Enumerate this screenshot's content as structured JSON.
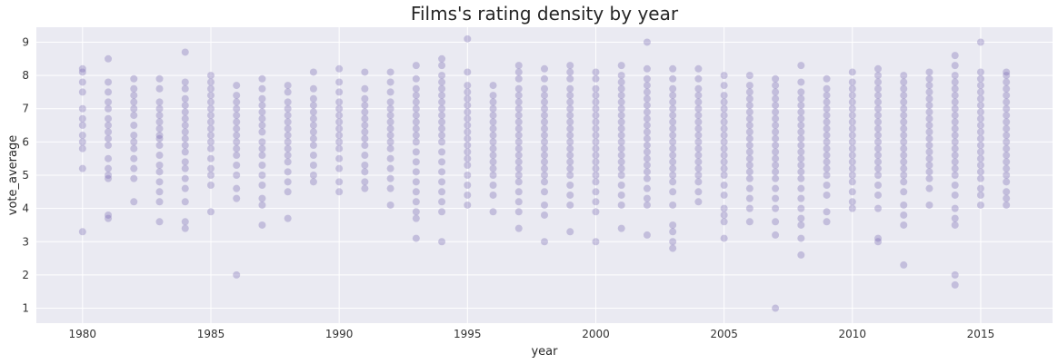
{
  "chart_data": {
    "type": "scatter",
    "title": "Films's rating density by year",
    "xlabel": "year",
    "ylabel": "vote_average",
    "xlim": [
      1978.2,
      2017.8
    ],
    "ylim": [
      0.55,
      9.45
    ],
    "x_ticks": [
      1980,
      1985,
      1990,
      1995,
      2000,
      2005,
      2010,
      2015
    ],
    "y_ticks": [
      1,
      2,
      3,
      4,
      5,
      6,
      7,
      8,
      9
    ],
    "grid": true,
    "point_color": "#7b6db4",
    "point_opacity": 0.35,
    "background_color": "#eaeaf2",
    "grid_color": "#ffffff",
    "series": [
      {
        "points": [
          {
            "year": 1980,
            "vote_average": [
              3.3,
              5.2,
              5.8,
              6.0,
              6.2,
              6.5,
              6.7,
              7.0,
              7.5,
              7.8,
              8.1,
              8.2
            ]
          },
          {
            "year": 1981,
            "vote_average": [
              3.7,
              3.8,
              4.9,
              5.0,
              5.2,
              5.5,
              5.9,
              6.1,
              6.3,
              6.5,
              6.7,
              7.0,
              7.2,
              7.5,
              7.8,
              8.5
            ]
          },
          {
            "year": 1982,
            "vote_average": [
              4.2,
              4.9,
              5.2,
              5.5,
              5.8,
              6.0,
              6.2,
              6.5,
              6.8,
              7.0,
              7.2,
              7.4,
              7.6,
              7.9
            ]
          },
          {
            "year": 1983,
            "vote_average": [
              3.6,
              4.2,
              4.5,
              4.8,
              5.1,
              5.3,
              5.6,
              5.9,
              6.1,
              6.2,
              6.4,
              6.6,
              6.8,
              7.0,
              7.2,
              7.6,
              7.9
            ]
          },
          {
            "year": 1984,
            "vote_average": [
              3.4,
              3.6,
              4.2,
              4.6,
              4.9,
              5.2,
              5.4,
              5.7,
              5.9,
              6.1,
              6.3,
              6.5,
              6.7,
              6.9,
              7.1,
              7.3,
              7.6,
              7.8,
              8.7
            ]
          },
          {
            "year": 1985,
            "vote_average": [
              3.9,
              4.7,
              5.0,
              5.2,
              5.5,
              5.8,
              6.0,
              6.2,
              6.4,
              6.6,
              6.8,
              7.0,
              7.2,
              7.4,
              7.6,
              7.8,
              8.0
            ]
          },
          {
            "year": 1986,
            "vote_average": [
              2.0,
              4.3,
              4.6,
              5.0,
              5.3,
              5.6,
              5.8,
              6.0,
              6.2,
              6.4,
              6.6,
              6.8,
              7.0,
              7.2,
              7.4,
              7.7
            ]
          },
          {
            "year": 1987,
            "vote_average": [
              3.5,
              4.1,
              4.3,
              4.7,
              5.0,
              5.3,
              5.6,
              5.8,
              6.0,
              6.3,
              6.5,
              6.7,
              6.9,
              7.1,
              7.3,
              7.6,
              7.9
            ]
          },
          {
            "year": 1988,
            "vote_average": [
              3.7,
              4.5,
              4.8,
              5.1,
              5.4,
              5.6,
              5.8,
              6.0,
              6.2,
              6.4,
              6.6,
              6.8,
              7.0,
              7.2,
              7.5,
              7.7
            ]
          },
          {
            "year": 1989,
            "vote_average": [
              4.8,
              5.0,
              5.3,
              5.6,
              5.9,
              6.1,
              6.3,
              6.5,
              6.7,
              6.9,
              7.1,
              7.3,
              7.6,
              8.1
            ]
          },
          {
            "year": 1990,
            "vote_average": [
              4.5,
              4.8,
              5.2,
              5.5,
              5.8,
              6.0,
              6.2,
              6.4,
              6.6,
              6.8,
              7.0,
              7.2,
              7.5,
              7.8,
              8.2
            ]
          },
          {
            "year": 1991,
            "vote_average": [
              4.6,
              4.8,
              5.1,
              5.3,
              5.6,
              5.9,
              6.1,
              6.3,
              6.5,
              6.7,
              6.9,
              7.1,
              7.3,
              7.6,
              8.1
            ]
          },
          {
            "year": 1992,
            "vote_average": [
              4.1,
              4.6,
              4.9,
              5.2,
              5.5,
              5.8,
              6.0,
              6.2,
              6.4,
              6.6,
              6.8,
              7.0,
              7.2,
              7.5,
              7.8,
              8.1
            ]
          },
          {
            "year": 1993,
            "vote_average": [
              3.1,
              3.7,
              3.9,
              4.2,
              4.5,
              4.8,
              5.1,
              5.4,
              5.7,
              6.0,
              6.2,
              6.4,
              6.6,
              6.8,
              7.0,
              7.2,
              7.4,
              7.6,
              7.9,
              8.3
            ]
          },
          {
            "year": 1994,
            "vote_average": [
              3.0,
              3.9,
              4.2,
              4.5,
              4.8,
              5.1,
              5.4,
              5.7,
              6.0,
              6.2,
              6.4,
              6.6,
              6.8,
              7.0,
              7.2,
              7.4,
              7.6,
              7.8,
              8.0,
              8.3,
              8.5
            ]
          },
          {
            "year": 1995,
            "vote_average": [
              4.1,
              4.4,
              4.7,
              5.0,
              5.3,
              5.5,
              5.7,
              5.9,
              6.1,
              6.3,
              6.5,
              6.7,
              6.9,
              7.1,
              7.3,
              7.5,
              7.7,
              8.1,
              9.1
            ]
          },
          {
            "year": 1996,
            "vote_average": [
              3.9,
              4.4,
              4.7,
              5.0,
              5.2,
              5.4,
              5.6,
              5.8,
              6.0,
              6.2,
              6.4,
              6.6,
              6.8,
              7.0,
              7.2,
              7.4,
              7.7
            ]
          },
          {
            "year": 1997,
            "vote_average": [
              3.4,
              3.9,
              4.2,
              4.5,
              4.8,
              5.0,
              5.2,
              5.4,
              5.6,
              5.8,
              6.0,
              6.2,
              6.4,
              6.6,
              6.8,
              7.0,
              7.2,
              7.4,
              7.6,
              7.9,
              8.1,
              8.3
            ]
          },
          {
            "year": 1998,
            "vote_average": [
              3.0,
              3.8,
              4.1,
              4.5,
              4.8,
              5.0,
              5.2,
              5.4,
              5.6,
              5.8,
              6.0,
              6.2,
              6.4,
              6.6,
              6.8,
              7.0,
              7.2,
              7.4,
              7.6,
              7.9,
              8.2
            ]
          },
          {
            "year": 1999,
            "vote_average": [
              3.3,
              4.1,
              4.4,
              4.7,
              5.0,
              5.2,
              5.4,
              5.6,
              5.8,
              6.0,
              6.2,
              6.4,
              6.6,
              6.8,
              7.0,
              7.2,
              7.4,
              7.6,
              7.9,
              8.1,
              8.3
            ]
          },
          {
            "year": 2000,
            "vote_average": [
              3.0,
              3.9,
              4.2,
              4.5,
              4.8,
              5.0,
              5.2,
              5.4,
              5.6,
              5.8,
              6.0,
              6.2,
              6.4,
              6.6,
              6.8,
              7.0,
              7.2,
              7.4,
              7.6,
              7.9,
              8.1
            ]
          },
          {
            "year": 2001,
            "vote_average": [
              3.4,
              4.1,
              4.4,
              4.7,
              5.0,
              5.2,
              5.4,
              5.6,
              5.8,
              6.0,
              6.2,
              6.4,
              6.6,
              6.8,
              7.0,
              7.2,
              7.4,
              7.6,
              7.8,
              8.0,
              8.3
            ]
          },
          {
            "year": 2002,
            "vote_average": [
              3.2,
              4.1,
              4.3,
              4.6,
              4.9,
              5.1,
              5.3,
              5.5,
              5.7,
              5.9,
              6.1,
              6.3,
              6.5,
              6.7,
              6.9,
              7.1,
              7.3,
              7.5,
              7.7,
              7.9,
              8.2,
              9.0
            ]
          },
          {
            "year": 2003,
            "vote_average": [
              2.8,
              3.0,
              3.3,
              3.5,
              4.1,
              4.5,
              4.8,
              5.0,
              5.2,
              5.4,
              5.6,
              5.8,
              6.0,
              6.2,
              6.4,
              6.6,
              6.8,
              7.0,
              7.2,
              7.4,
              7.6,
              7.9,
              8.2
            ]
          },
          {
            "year": 2004,
            "vote_average": [
              4.2,
              4.5,
              4.8,
              5.0,
              5.2,
              5.4,
              5.6,
              5.8,
              6.0,
              6.2,
              6.4,
              6.6,
              6.8,
              7.0,
              7.2,
              7.4,
              7.6,
              7.9,
              8.2
            ]
          },
          {
            "year": 2005,
            "vote_average": [
              3.1,
              3.6,
              3.8,
              4.0,
              4.4,
              4.7,
              5.0,
              5.2,
              5.4,
              5.6,
              5.8,
              6.0,
              6.2,
              6.4,
              6.6,
              6.8,
              7.0,
              7.2,
              7.4,
              7.7,
              8.0
            ]
          },
          {
            "year": 2006,
            "vote_average": [
              3.6,
              4.0,
              4.3,
              4.6,
              4.9,
              5.1,
              5.3,
              5.5,
              5.7,
              5.9,
              6.1,
              6.3,
              6.5,
              6.7,
              6.9,
              7.1,
              7.3,
              7.5,
              7.7,
              8.0
            ]
          },
          {
            "year": 2007,
            "vote_average": [
              1.0,
              3.2,
              3.6,
              4.0,
              4.3,
              4.6,
              4.9,
              5.1,
              5.3,
              5.5,
              5.7,
              5.9,
              6.1,
              6.3,
              6.5,
              6.7,
              6.9,
              7.1,
              7.3,
              7.5,
              7.7,
              7.9
            ]
          },
          {
            "year": 2008,
            "vote_average": [
              2.6,
              3.1,
              3.5,
              3.7,
              4.0,
              4.3,
              4.6,
              4.9,
              5.1,
              5.3,
              5.5,
              5.7,
              5.9,
              6.1,
              6.3,
              6.5,
              6.7,
              6.9,
              7.1,
              7.3,
              7.5,
              7.8,
              8.3
            ]
          },
          {
            "year": 2009,
            "vote_average": [
              3.6,
              3.9,
              4.4,
              4.7,
              5.0,
              5.2,
              5.4,
              5.6,
              5.8,
              6.0,
              6.2,
              6.4,
              6.6,
              6.8,
              7.0,
              7.2,
              7.4,
              7.6,
              7.9
            ]
          },
          {
            "year": 2010,
            "vote_average": [
              4.0,
              4.2,
              4.5,
              4.8,
              5.0,
              5.2,
              5.4,
              5.6,
              5.8,
              6.0,
              6.2,
              6.4,
              6.6,
              6.8,
              7.0,
              7.2,
              7.4,
              7.6,
              7.8,
              8.1
            ]
          },
          {
            "year": 2011,
            "vote_average": [
              3.0,
              3.1,
              4.0,
              4.4,
              4.7,
              5.0,
              5.2,
              5.4,
              5.6,
              5.8,
              6.0,
              6.2,
              6.4,
              6.6,
              6.8,
              7.0,
              7.2,
              7.4,
              7.6,
              7.8,
              8.0,
              8.2
            ]
          },
          {
            "year": 2012,
            "vote_average": [
              2.3,
              3.5,
              3.8,
              4.1,
              4.5,
              4.8,
              5.0,
              5.2,
              5.4,
              5.6,
              5.8,
              6.0,
              6.2,
              6.4,
              6.6,
              6.8,
              7.0,
              7.2,
              7.4,
              7.6,
              7.8,
              8.0
            ]
          },
          {
            "year": 2013,
            "vote_average": [
              4.1,
              4.6,
              4.9,
              5.1,
              5.3,
              5.5,
              5.7,
              5.9,
              6.1,
              6.3,
              6.5,
              6.7,
              6.9,
              7.1,
              7.3,
              7.5,
              7.7,
              7.9,
              8.1
            ]
          },
          {
            "year": 2014,
            "vote_average": [
              1.7,
              2.0,
              3.5,
              3.7,
              4.0,
              4.4,
              4.7,
              5.0,
              5.2,
              5.4,
              5.6,
              5.8,
              6.0,
              6.2,
              6.4,
              6.6,
              6.8,
              7.0,
              7.2,
              7.4,
              7.6,
              7.8,
              8.0,
              8.3,
              8.6
            ]
          },
          {
            "year": 2015,
            "vote_average": [
              4.1,
              4.4,
              4.6,
              4.9,
              5.1,
              5.3,
              5.5,
              5.7,
              5.9,
              6.1,
              6.3,
              6.5,
              6.7,
              6.9,
              7.1,
              7.3,
              7.5,
              7.7,
              7.9,
              8.1,
              9.0
            ]
          },
          {
            "year": 2016,
            "vote_average": [
              4.1,
              4.3,
              4.5,
              4.8,
              5.0,
              5.2,
              5.4,
              5.6,
              5.8,
              6.0,
              6.2,
              6.4,
              6.6,
              6.8,
              7.0,
              7.2,
              7.4,
              7.6,
              7.8,
              8.0,
              8.1
            ]
          }
        ]
      }
    ]
  }
}
